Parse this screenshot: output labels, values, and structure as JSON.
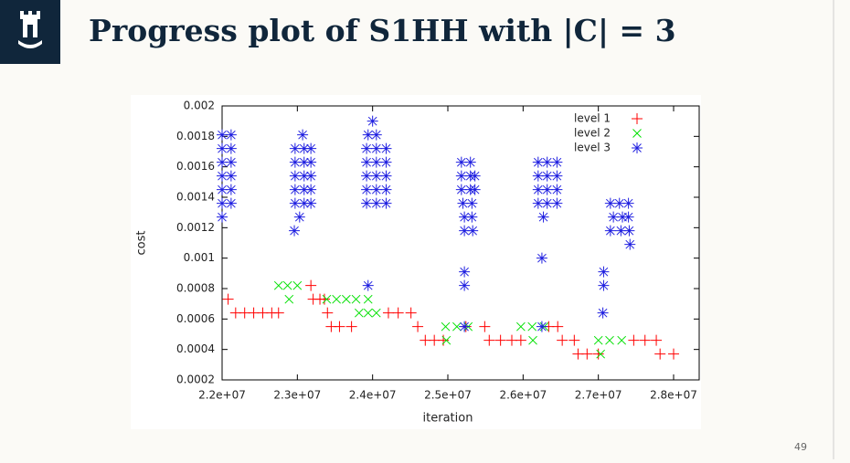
{
  "slide": {
    "title": "Progress plot of S1HH with |C| = 3",
    "page_number": "49"
  },
  "chart_data": {
    "type": "scatter",
    "x_label": "iteration",
    "y_label": "cost",
    "xlim": [
      22000000,
      28340000
    ],
    "xticks": [
      {
        "value": 22000000,
        "label": "2.2e+07"
      },
      {
        "value": 23000000,
        "label": "2.3e+07"
      },
      {
        "value": 24000000,
        "label": "2.4e+07"
      },
      {
        "value": 25000000,
        "label": "2.5e+07"
      },
      {
        "value": 26000000,
        "label": "2.6e+07"
      },
      {
        "value": 27000000,
        "label": "2.7e+07"
      },
      {
        "value": 28000000,
        "label": "2.8e+07"
      }
    ],
    "ylim": [
      0.0002,
      0.002
    ],
    "yticks": [
      0.0002,
      0.0004,
      0.0006,
      0.0008,
      0.001,
      0.0012,
      0.0014,
      0.0016,
      0.0018,
      0.002
    ],
    "legend": "upper right",
    "series": [
      {
        "name": "level 1",
        "color": "#ff0000",
        "marker": "plus",
        "x": [
          22080000,
          22180000,
          22300000,
          22420000,
          22540000,
          22660000,
          22750000,
          23180000,
          23210000,
          23300000,
          23360000,
          23400000,
          23450000,
          23560000,
          23720000,
          24210000,
          24340000,
          24510000,
          24600000,
          24700000,
          24820000,
          24940000,
          25240000,
          25490000,
          25550000,
          25700000,
          25850000,
          25970000,
          26340000,
          26460000,
          26520000,
          26680000,
          26730000,
          26850000,
          27000000,
          27470000,
          27620000,
          27770000,
          27820000,
          28000000
        ],
        "values": [
          0.00073,
          0.00064,
          0.00064,
          0.00064,
          0.00064,
          0.00064,
          0.00064,
          0.00082,
          0.00073,
          0.00073,
          0.00073,
          0.00064,
          0.00055,
          0.00055,
          0.00055,
          0.00064,
          0.00064,
          0.00064,
          0.00055,
          0.00046,
          0.00046,
          0.00046,
          0.00055,
          0.00055,
          0.00046,
          0.00046,
          0.00046,
          0.00046,
          0.00055,
          0.00055,
          0.00046,
          0.00046,
          0.00037,
          0.00037,
          0.00037,
          0.00046,
          0.00046,
          0.00046,
          0.00037,
          0.00037
        ]
      },
      {
        "name": "level 2",
        "color": "#00e000",
        "marker": "cross",
        "x": [
          22750000,
          22870000,
          23000000,
          22890000,
          23390000,
          23520000,
          23650000,
          23780000,
          23940000,
          23820000,
          23940000,
          24050000,
          24970000,
          25120000,
          25270000,
          24980000,
          25970000,
          26120000,
          26280000,
          26130000,
          27000000,
          27150000,
          27310000,
          27030000
        ],
        "values": [
          0.00082,
          0.00082,
          0.00082,
          0.00073,
          0.00073,
          0.00073,
          0.00073,
          0.00073,
          0.00073,
          0.00064,
          0.00064,
          0.00064,
          0.00055,
          0.00055,
          0.00055,
          0.00046,
          0.00055,
          0.00055,
          0.00055,
          0.00046,
          0.00046,
          0.00046,
          0.00046,
          0.00037
        ]
      },
      {
        "name": "level 3",
        "color": "#1f1fe0",
        "marker": "star",
        "x": [
          22000000,
          22120000,
          22000000,
          22120000,
          22000000,
          22120000,
          22000000,
          22120000,
          22000000,
          22120000,
          22000000,
          22120000,
          22000000,
          22970000,
          23090000,
          23180000,
          22970000,
          23090000,
          23180000,
          22970000,
          23090000,
          23180000,
          22970000,
          23090000,
          23180000,
          22970000,
          23090000,
          23180000,
          23070000,
          23030000,
          22960000,
          24000000,
          23940000,
          24050000,
          23920000,
          24050000,
          24180000,
          23920000,
          24050000,
          24180000,
          23920000,
          24050000,
          24180000,
          23920000,
          24050000,
          24180000,
          23920000,
          24050000,
          24180000,
          23940000,
          25180000,
          25300000,
          25180000,
          25300000,
          25360000,
          25180000,
          25300000,
          25360000,
          25200000,
          25320000,
          25220000,
          25320000,
          25220000,
          25330000,
          25220000,
          25220000,
          25220000,
          26200000,
          26320000,
          26450000,
          26200000,
          26320000,
          26450000,
          26200000,
          26320000,
          26450000,
          26200000,
          26320000,
          26450000,
          26270000,
          26250000,
          26250000,
          27160000,
          27280000,
          27400000,
          27200000,
          27320000,
          27400000,
          27160000,
          27300000,
          27410000,
          27420000,
          27070000,
          27070000,
          27060000
        ],
        "values": [
          0.00181,
          0.00181,
          0.00172,
          0.00172,
          0.00163,
          0.00163,
          0.00154,
          0.00154,
          0.00145,
          0.00145,
          0.00136,
          0.00136,
          0.00127,
          0.00172,
          0.00172,
          0.00172,
          0.00163,
          0.00163,
          0.00163,
          0.00154,
          0.00154,
          0.00154,
          0.00145,
          0.00145,
          0.00145,
          0.00136,
          0.00136,
          0.00136,
          0.00181,
          0.00127,
          0.00118,
          0.0019,
          0.00181,
          0.00181,
          0.00172,
          0.00172,
          0.00172,
          0.00163,
          0.00163,
          0.00163,
          0.00154,
          0.00154,
          0.00154,
          0.00145,
          0.00145,
          0.00145,
          0.00136,
          0.00136,
          0.00136,
          0.00082,
          0.00163,
          0.00163,
          0.00154,
          0.00154,
          0.00154,
          0.00145,
          0.00145,
          0.00145,
          0.00136,
          0.00136,
          0.00127,
          0.00127,
          0.00118,
          0.00118,
          0.00091,
          0.00082,
          0.00055,
          0.00163,
          0.00163,
          0.00163,
          0.00154,
          0.00154,
          0.00154,
          0.00145,
          0.00145,
          0.00145,
          0.00136,
          0.00136,
          0.00136,
          0.00127,
          0.001,
          0.00055,
          0.00136,
          0.00136,
          0.00136,
          0.00127,
          0.00127,
          0.00127,
          0.00118,
          0.00118,
          0.00118,
          0.00109,
          0.00091,
          0.00082,
          0.00064
        ]
      }
    ]
  }
}
